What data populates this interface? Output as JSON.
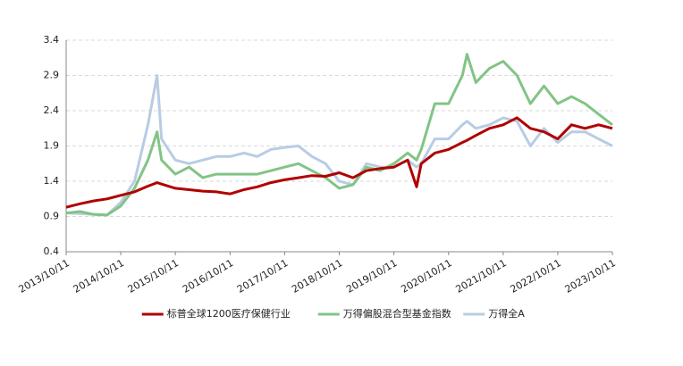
{
  "chart_data": {
    "type": "line",
    "x": [
      "2013/10/11",
      "2014/01/11",
      "2014/04/11",
      "2014/07/11",
      "2014/10/11",
      "2015/01/11",
      "2015/04/11",
      "2015/06/11",
      "2015/07/11",
      "2015/10/11",
      "2016/01/11",
      "2016/04/11",
      "2016/07/11",
      "2016/10/11",
      "2017/01/11",
      "2017/04/11",
      "2017/07/11",
      "2017/10/11",
      "2018/01/11",
      "2018/04/11",
      "2018/07/11",
      "2018/10/11",
      "2019/01/11",
      "2019/04/11",
      "2019/07/11",
      "2019/10/11",
      "2020/01/11",
      "2020/03/11",
      "2020/04/11",
      "2020/07/11",
      "2020/10/11",
      "2021/01/11",
      "2021/02/11",
      "2021/04/11",
      "2021/07/11",
      "2021/10/11",
      "2022/01/11",
      "2022/04/11",
      "2022/07/11",
      "2022/10/11",
      "2023/01/11",
      "2023/04/11",
      "2023/07/11",
      "2023/10/11"
    ],
    "series": [
      {
        "name": "标普全球1200医疗保健行业",
        "color": "#b00000",
        "values": [
          1.03,
          1.08,
          1.12,
          1.15,
          1.2,
          1.25,
          1.33,
          1.38,
          1.36,
          1.3,
          1.28,
          1.26,
          1.25,
          1.22,
          1.28,
          1.32,
          1.38,
          1.42,
          1.45,
          1.48,
          1.47,
          1.52,
          1.45,
          1.55,
          1.58,
          1.6,
          1.7,
          1.32,
          1.65,
          1.8,
          1.85,
          1.95,
          1.98,
          2.05,
          2.15,
          2.2,
          2.3,
          2.15,
          2.1,
          2.0,
          2.2,
          2.15,
          2.2,
          2.15
        ]
      },
      {
        "name": "万得偏股混合型基金指数",
        "color": "#82c485",
        "values": [
          0.95,
          0.97,
          0.93,
          0.92,
          1.05,
          1.3,
          1.7,
          2.1,
          1.7,
          1.5,
          1.6,
          1.45,
          1.5,
          1.5,
          1.5,
          1.5,
          1.55,
          1.6,
          1.65,
          1.55,
          1.45,
          1.3,
          1.35,
          1.6,
          1.55,
          1.65,
          1.8,
          1.7,
          1.85,
          2.5,
          2.5,
          2.9,
          3.2,
          2.8,
          3.0,
          3.1,
          2.9,
          2.5,
          2.75,
          2.5,
          2.6,
          2.5,
          2.35,
          2.2
        ]
      },
      {
        "name": "万得全A",
        "color": "#b8cce4",
        "values": [
          0.95,
          0.94,
          0.93,
          0.92,
          1.1,
          1.4,
          2.2,
          2.9,
          2.0,
          1.7,
          1.65,
          1.7,
          1.75,
          1.75,
          1.8,
          1.75,
          1.85,
          1.88,
          1.9,
          1.75,
          1.65,
          1.4,
          1.35,
          1.65,
          1.6,
          1.6,
          1.7,
          1.6,
          1.65,
          2.0,
          2.0,
          2.2,
          2.25,
          2.15,
          2.2,
          2.3,
          2.25,
          1.9,
          2.15,
          1.95,
          2.1,
          2.1,
          2.0,
          1.9
        ]
      }
    ],
    "xlim": [
      "2013/10/11",
      "2023/10/11"
    ],
    "xticks": [
      "2013/10/11",
      "2014/10/11",
      "2015/10/11",
      "2016/10/11",
      "2017/10/11",
      "2018/10/11",
      "2019/10/11",
      "2020/10/11",
      "2021/10/11",
      "2022/10/11",
      "2023/10/11"
    ],
    "ylim": [
      0.4,
      3.4
    ],
    "yticks": [
      0.4,
      0.9,
      1.4,
      1.9,
      2.4,
      2.9,
      3.4
    ],
    "grid": true,
    "legend": "bottom"
  }
}
